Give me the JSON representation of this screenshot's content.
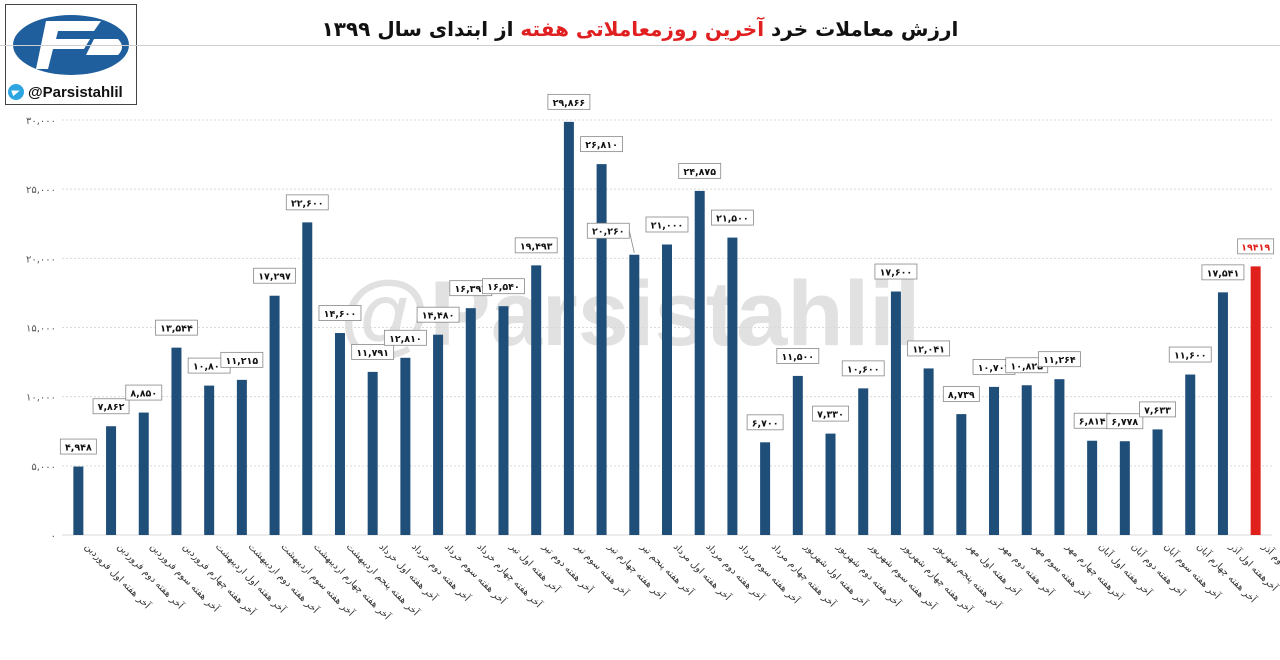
{
  "title": {
    "part1": "ارزش معاملات خرد",
    "part2": "آخرین روزمعاملاتی هفته",
    "part3": "از ابتدای سال ۱۳۹۹",
    "highlight_color": "#e02020"
  },
  "logo": {
    "icon": "parsistahlil-logo",
    "handle": "@Parsistahlil"
  },
  "watermark": "@Parsistahlil",
  "colors": {
    "bar": "#1f4e79",
    "last_bar": "#e0201b"
  },
  "chart_data": {
    "type": "bar",
    "title": "ارزش معاملات خرد آخرین روزمعاملاتی هفته از ابتدای سال ۱۳۹۹",
    "ylim": [
      0,
      30000
    ],
    "yticks": [
      0,
      5000,
      10000,
      15000,
      20000,
      25000,
      30000
    ],
    "ytick_labels": [
      "۰",
      "۵,۰۰۰",
      "۱۰,۰۰۰",
      "۱۵,۰۰۰",
      "۲۰,۰۰۰",
      "۲۵,۰۰۰",
      "۳۰,۰۰۰"
    ],
    "grid": "horizontal",
    "categories": [
      "آخر هفته اول فروردین",
      "آخر هفته دوم فروردین",
      "آخر هفته سوم فروردین",
      "آخر هفته چهارم فروردین",
      "آخر هفته اول اردیبهشت",
      "آخر هفته دوم اردیبهشت",
      "آخر هفته سوم اردیبهشت",
      "آخر هفته چهارم اردیبهشت",
      "آخر هفته پنجم اردیبهشت",
      "آخر هفته اول خرداد",
      "آخر هفته دوم خرداد",
      "آخر هفته سوم خرداد",
      "آخر هفته چهارم خرداد",
      "آخر هفته اول تیر",
      "آخر هفته دوم تیر",
      "آخر هفته سوم تیر",
      "آخر هفته چهارم تیر",
      "آخر هفته پنجم تیر",
      "آخر هفته اول مرداد",
      "آخر هفته دوم مرداد",
      "آخر هفته سوم مرداد",
      "آخر هفته چهارم مرداد",
      "آخر هفته اول شهریور",
      "آخر هفته دوم شهریور",
      "آخر هفته سوم شهریور",
      "آخر هفته چهارم شهریور",
      "آخر هفته پنجم شهریور",
      "آخر هفته اول مهر",
      "آخر هفته دوم مهر",
      "آخر هفته سوم مهر",
      "آخرهفته چهارم مهر",
      "آخر هفته اول آبان",
      "آخر هفته دوم آبان",
      "آخر هفته سوم آبان",
      "آخر هفته چهارم آبان",
      "آخرهفته اول آذر",
      "آخرهفته دوم آذر"
    ],
    "values": [
      4948,
      7862,
      8850,
      13544,
      10800,
      11215,
      17297,
      22600,
      14600,
      11791,
      12810,
      14480,
      16397,
      16540,
      19493,
      29866,
      26810,
      20260,
      21000,
      24875,
      21500,
      6700,
      11500,
      7330,
      10600,
      17600,
      12041,
      8739,
      10707,
      10825,
      11264,
      6814,
      6778,
      7633,
      11600,
      17541,
      19419
    ],
    "labels": [
      "۴,۹۴۸",
      "۷,۸۶۲",
      "۸,۸۵۰",
      "۱۳,۵۴۴",
      "۱۰,۸۰۰",
      "۱۱,۲۱۵",
      "۱۷,۲۹۷",
      "۲۲,۶۰۰",
      "۱۴,۶۰۰",
      "۱۱,۷۹۱",
      "۱۲,۸۱۰",
      "۱۴,۴۸۰",
      "۱۶,۳۹۷",
      "۱۶,۵۴۰",
      "۱۹,۴۹۳",
      "۲۹,۸۶۶",
      "۲۶,۸۱۰",
      "۲۰,۲۶۰",
      "۲۱,۰۰۰",
      "۲۴,۸۷۵",
      "۲۱,۵۰۰",
      "۶,۷۰۰",
      "۱۱,۵۰۰",
      "۷,۳۳۰",
      "۱۰,۶۰۰",
      "۱۷,۶۰۰",
      "۱۲,۰۴۱",
      "۸,۷۳۹",
      "۱۰,۷۰۷",
      "۱۰,۸۲۵",
      "۱۱,۲۶۴",
      "۶,۸۱۴",
      "۶,۷۷۸",
      "۷,۶۳۳",
      "۱۱,۶۰۰",
      "۱۷,۵۴۱",
      "۱۹۴۱۹"
    ]
  }
}
